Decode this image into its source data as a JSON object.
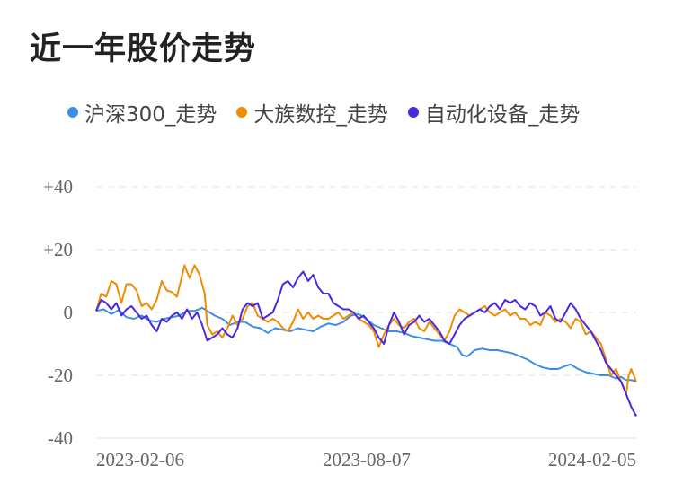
{
  "title": "近一年股价走势",
  "legend": [
    {
      "name": "沪深300_走势",
      "color": "#3a8ee6"
    },
    {
      "name": "大族数控_走势",
      "color": "#f08c00"
    },
    {
      "name": "自动化设备_走势",
      "color": "#4a28e0"
    }
  ],
  "chart_data": {
    "type": "line",
    "title": "近一年股价走势",
    "xlabel": "",
    "ylabel": "",
    "x_ticks": [
      "2023-02-06",
      "2023-08-07",
      "2024-02-05"
    ],
    "y_ticks": [
      "+40",
      "+20",
      "0",
      "-20",
      "-40"
    ],
    "y_tick_values": [
      40,
      20,
      0,
      -20,
      -40
    ],
    "ylim": [
      -40,
      40
    ],
    "grid": true,
    "legend_position": "top",
    "series": [
      {
        "name": "沪深300_走势",
        "color": "#3a8ee6",
        "points": [
          [
            0,
            0.5
          ],
          [
            3,
            1
          ],
          [
            6,
            -0.5
          ],
          [
            9,
            0.8
          ],
          [
            12,
            -1.5
          ],
          [
            15,
            -2
          ],
          [
            18,
            -1
          ],
          [
            21,
            -2.5
          ],
          [
            24,
            -3
          ],
          [
            27,
            -2
          ],
          [
            30,
            -1.5
          ],
          [
            33,
            -1
          ],
          [
            36,
            0.5
          ],
          [
            39,
            0.5
          ],
          [
            42,
            1.5
          ],
          [
            44,
            0.5
          ],
          [
            47,
            -1
          ],
          [
            50,
            -2
          ],
          [
            53,
            -4
          ],
          [
            56,
            -3
          ],
          [
            59,
            -3
          ],
          [
            62,
            -4.5
          ],
          [
            65,
            -5
          ],
          [
            68,
            -6.5
          ],
          [
            71,
            -5
          ],
          [
            74,
            -5.5
          ],
          [
            77,
            -6
          ],
          [
            80,
            -5
          ],
          [
            83,
            -5.5
          ],
          [
            86,
            -6
          ],
          [
            89,
            -4.5
          ],
          [
            92,
            -3.5
          ],
          [
            95,
            -4
          ],
          [
            98,
            -3
          ],
          [
            101,
            -1
          ],
          [
            104,
            -0.5
          ],
          [
            107,
            -2
          ],
          [
            110,
            -4
          ],
          [
            113,
            -5
          ],
          [
            116,
            -6
          ],
          [
            119,
            -6
          ],
          [
            122,
            -6.5
          ],
          [
            125,
            -7.5
          ],
          [
            128,
            -8
          ],
          [
            131,
            -8.5
          ],
          [
            134,
            -9
          ],
          [
            137,
            -9
          ],
          [
            140,
            -10
          ],
          [
            143,
            -11
          ],
          [
            145,
            -13.5
          ],
          [
            147,
            -14
          ],
          [
            150,
            -12
          ],
          [
            153,
            -11.5
          ],
          [
            156,
            -12
          ],
          [
            159,
            -12
          ],
          [
            162,
            -12.5
          ],
          [
            165,
            -13
          ],
          [
            168,
            -14
          ],
          [
            171,
            -15
          ],
          [
            174,
            -16.5
          ],
          [
            177,
            -17.5
          ],
          [
            180,
            -18
          ],
          [
            183,
            -18
          ],
          [
            186,
            -17
          ],
          [
            188,
            -16.5
          ],
          [
            191,
            -18
          ],
          [
            194,
            -19
          ],
          [
            197,
            -19.5
          ],
          [
            200,
            -20
          ],
          [
            203,
            -20
          ],
          [
            206,
            -21
          ],
          [
            208,
            -20.5
          ],
          [
            210,
            -21.5
          ],
          [
            212,
            -21.5
          ],
          [
            214,
            -22
          ]
        ]
      },
      {
        "name": "大族数控_走势",
        "color": "#f08c00",
        "points": [
          [
            0,
            0.5
          ],
          [
            2,
            6
          ],
          [
            4,
            5
          ],
          [
            6,
            10
          ],
          [
            8,
            9
          ],
          [
            10,
            3
          ],
          [
            12,
            9
          ],
          [
            14,
            9
          ],
          [
            16,
            7
          ],
          [
            18,
            2
          ],
          [
            20,
            3
          ],
          [
            22,
            1
          ],
          [
            24,
            4
          ],
          [
            26,
            10
          ],
          [
            28,
            7
          ],
          [
            30,
            6.5
          ],
          [
            32,
            5
          ],
          [
            35,
            15
          ],
          [
            37,
            11
          ],
          [
            39,
            15
          ],
          [
            41,
            12
          ],
          [
            43,
            6
          ],
          [
            44,
            -4
          ],
          [
            46,
            -7
          ],
          [
            48,
            -6
          ],
          [
            50,
            -8
          ],
          [
            52,
            -5
          ],
          [
            54,
            -1
          ],
          [
            56,
            -4
          ],
          [
            58,
            -2
          ],
          [
            60,
            2
          ],
          [
            62,
            3
          ],
          [
            64,
            -1
          ],
          [
            66,
            -2
          ],
          [
            68,
            -3
          ],
          [
            70,
            -2
          ],
          [
            72,
            -3
          ],
          [
            74,
            -5
          ],
          [
            76,
            -6
          ],
          [
            78,
            -3
          ],
          [
            80,
            1
          ],
          [
            82,
            -2
          ],
          [
            84,
            0
          ],
          [
            86,
            -2
          ],
          [
            88,
            -1
          ],
          [
            90,
            -2
          ],
          [
            92,
            -2
          ],
          [
            94,
            -1
          ],
          [
            96,
            0
          ],
          [
            98,
            -2
          ],
          [
            100,
            -1
          ],
          [
            102,
            0
          ],
          [
            104,
            -2
          ],
          [
            106,
            -3
          ],
          [
            108,
            -4
          ],
          [
            110,
            -6
          ],
          [
            112,
            -11
          ],
          [
            114,
            -7
          ],
          [
            116,
            -4
          ],
          [
            118,
            -2
          ],
          [
            120,
            -4
          ],
          [
            122,
            -5
          ],
          [
            124,
            -3
          ],
          [
            126,
            -2
          ],
          [
            128,
            -5
          ],
          [
            130,
            -6
          ],
          [
            132,
            -3
          ],
          [
            134,
            -5
          ],
          [
            136,
            -7
          ],
          [
            138,
            -9
          ],
          [
            140,
            -6
          ],
          [
            142,
            -1
          ],
          [
            144,
            1
          ],
          [
            146,
            0
          ],
          [
            148,
            -1
          ],
          [
            150,
            0
          ],
          [
            152,
            1
          ],
          [
            154,
            2
          ],
          [
            156,
            0
          ],
          [
            158,
            -1
          ],
          [
            160,
            0
          ],
          [
            162,
            1
          ],
          [
            164,
            -1
          ],
          [
            166,
            0
          ],
          [
            168,
            -2
          ],
          [
            170,
            -2
          ],
          [
            172,
            -4
          ],
          [
            174,
            -3
          ],
          [
            176,
            -4
          ],
          [
            178,
            0
          ],
          [
            180,
            -1
          ],
          [
            182,
            -3
          ],
          [
            184,
            -2
          ],
          [
            186,
            -3
          ],
          [
            188,
            -5
          ],
          [
            190,
            -2
          ],
          [
            192,
            -3
          ],
          [
            194,
            -7
          ],
          [
            196,
            -6
          ],
          [
            198,
            -8
          ],
          [
            200,
            -10
          ],
          [
            202,
            -15
          ],
          [
            204,
            -20
          ],
          [
            206,
            -18
          ],
          [
            208,
            -22
          ],
          [
            210,
            -26
          ],
          [
            211,
            -20
          ],
          [
            212,
            -18
          ],
          [
            214,
            -22
          ]
        ]
      },
      {
        "name": "自动化设备_走势",
        "color": "#4a28e0",
        "points": [
          [
            0,
            0.5
          ],
          [
            2,
            4
          ],
          [
            4,
            3
          ],
          [
            6,
            1
          ],
          [
            8,
            3
          ],
          [
            10,
            -1
          ],
          [
            12,
            1
          ],
          [
            14,
            2
          ],
          [
            16,
            0
          ],
          [
            18,
            -2
          ],
          [
            20,
            -1
          ],
          [
            22,
            -4
          ],
          [
            24,
            -6
          ],
          [
            26,
            -2
          ],
          [
            28,
            -3
          ],
          [
            30,
            -1
          ],
          [
            32,
            0
          ],
          [
            34,
            -2
          ],
          [
            36,
            1
          ],
          [
            38,
            -2
          ],
          [
            40,
            0
          ],
          [
            42,
            -4
          ],
          [
            44,
            -9
          ],
          [
            46,
            -8
          ],
          [
            48,
            -7
          ],
          [
            50,
            -5
          ],
          [
            52,
            -7
          ],
          [
            54,
            -8
          ],
          [
            56,
            -5
          ],
          [
            58,
            1
          ],
          [
            60,
            3
          ],
          [
            62,
            2
          ],
          [
            64,
            3
          ],
          [
            66,
            -2
          ],
          [
            68,
            -1
          ],
          [
            70,
            0
          ],
          [
            72,
            4
          ],
          [
            74,
            9
          ],
          [
            76,
            10
          ],
          [
            78,
            8
          ],
          [
            80,
            11
          ],
          [
            82,
            13
          ],
          [
            84,
            10
          ],
          [
            86,
            12
          ],
          [
            88,
            8
          ],
          [
            90,
            6
          ],
          [
            92,
            6
          ],
          [
            94,
            3
          ],
          [
            96,
            2
          ],
          [
            98,
            1
          ],
          [
            100,
            1
          ],
          [
            102,
            0
          ],
          [
            104,
            -2
          ],
          [
            106,
            -1
          ],
          [
            108,
            -3
          ],
          [
            110,
            -5
          ],
          [
            112,
            -8
          ],
          [
            114,
            -10
          ],
          [
            116,
            -4
          ],
          [
            118,
            0
          ],
          [
            120,
            -3
          ],
          [
            122,
            -7
          ],
          [
            124,
            -4
          ],
          [
            126,
            -3
          ],
          [
            128,
            -1
          ],
          [
            130,
            -3
          ],
          [
            132,
            -2
          ],
          [
            134,
            -4
          ],
          [
            136,
            -6
          ],
          [
            138,
            -9
          ],
          [
            140,
            -10
          ],
          [
            142,
            -7
          ],
          [
            144,
            -4
          ],
          [
            146,
            -2
          ],
          [
            148,
            -1
          ],
          [
            150,
            0
          ],
          [
            152,
            1
          ],
          [
            154,
            0
          ],
          [
            156,
            2
          ],
          [
            158,
            3
          ],
          [
            160,
            1
          ],
          [
            162,
            4
          ],
          [
            164,
            3
          ],
          [
            166,
            4
          ],
          [
            168,
            2
          ],
          [
            170,
            1
          ],
          [
            172,
            3
          ],
          [
            174,
            2
          ],
          [
            176,
            -1
          ],
          [
            178,
            0
          ],
          [
            180,
            2
          ],
          [
            182,
            -2
          ],
          [
            184,
            -3
          ],
          [
            186,
            0
          ],
          [
            188,
            3
          ],
          [
            190,
            1
          ],
          [
            192,
            -2
          ],
          [
            194,
            -4
          ],
          [
            196,
            -6
          ],
          [
            198,
            -9
          ],
          [
            200,
            -12
          ],
          [
            202,
            -16
          ],
          [
            204,
            -18
          ],
          [
            206,
            -20
          ],
          [
            208,
            -22
          ],
          [
            210,
            -26
          ],
          [
            212,
            -30
          ],
          [
            214,
            -33
          ]
        ]
      }
    ]
  }
}
